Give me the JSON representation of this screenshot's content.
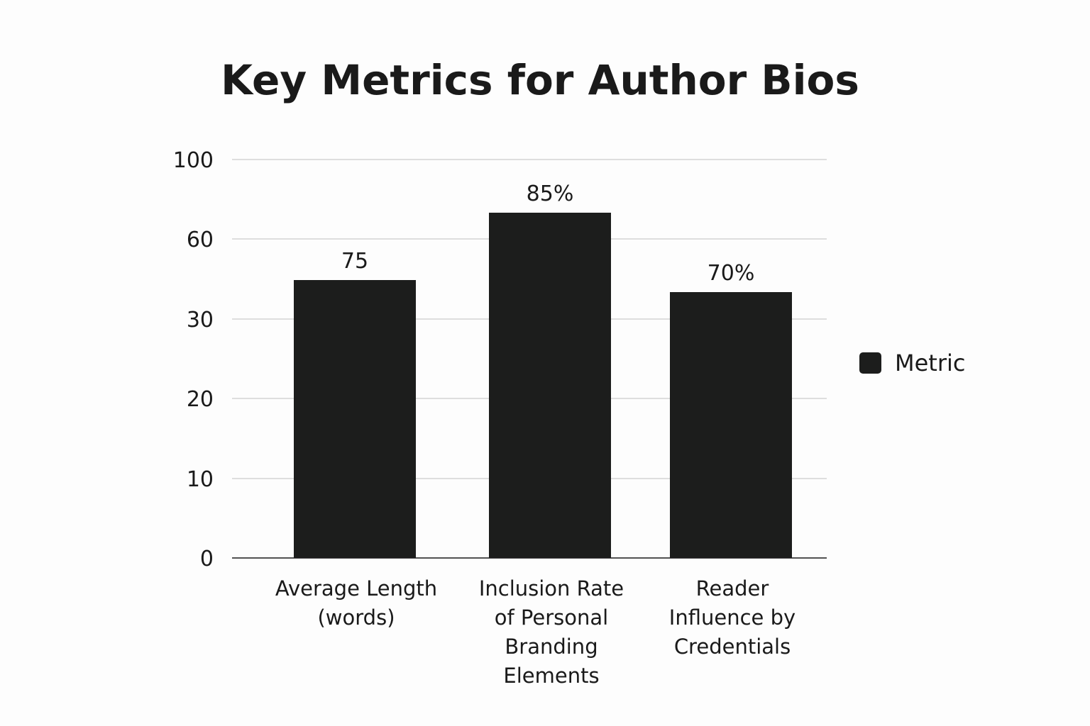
{
  "chart_data": {
    "type": "bar",
    "title": "Key Metrics for Author Bios",
    "xlabel": "",
    "ylabel": "",
    "categories": [
      [
        "Average Length",
        "(words)"
      ],
      [
        "Inclusion Rate",
        "of Personal",
        "Branding",
        "Elements"
      ],
      [
        "Reader",
        "Influence by",
        "Credentials"
      ]
    ],
    "y_ticks": [
      "0",
      "10",
      "20",
      "30",
      "60",
      "100"
    ],
    "y_tick_values": [
      0,
      10,
      20,
      30,
      60,
      100
    ],
    "series": [
      {
        "name": "Metric",
        "values": [
          75,
          85,
          70
        ],
        "labels": [
          "75",
          "85%",
          "70%"
        ],
        "color": "#1c1d1c"
      }
    ],
    "grid": true,
    "legend": "right"
  }
}
